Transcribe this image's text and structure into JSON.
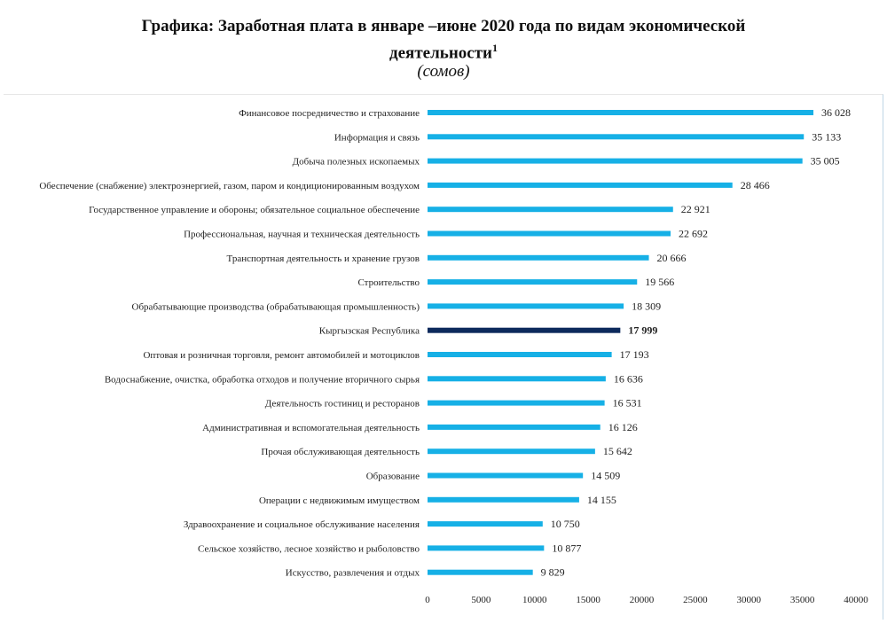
{
  "header": {
    "title_line1": "Графика: Заработная плата в январе –июне 2020 года по видам  экономической",
    "title_line2": "деятельности",
    "footnote_mark": "1",
    "unit": "(сомов)"
  },
  "colors": {
    "bar": "#16b0e6",
    "highlight_bar": "#0d2a5c"
  },
  "chart_data": {
    "type": "bar",
    "orientation": "horizontal",
    "title": "Графика: Заработная плата в январе –июне 2020 года по видам  экономической деятельности",
    "subtitle": "(сомов)",
    "categories": [
      "Финансовое посредничество и страхование",
      "Информация  и  связь",
      "Добыча полезных ископаемых",
      "Обеспечение (снабжение) электроэнергией, газом, паром и кондиционированным  воздухом",
      "Государственное управление  и обороны; обязательное социальное обеспечение",
      "Профессиональная, научная  и техническая деятельность",
      "Транспортная  деятельность и хранение  грузов",
      "Строительство",
      "Обрабатывающие производства (обрабатывающая промышленность)",
      "Кыргызская Республика",
      "Оптовая и розничная торговля, ремонт автомобилей и мотоциклов",
      "Водоснабжение, очистка, обработка отходов и получение вторичного сырья",
      "Деятельность гостиниц и ресторанов",
      "Административная  и вспомогательная деятельность",
      "Прочая обслуживающая деятельность",
      "Образование",
      "Операции  с недвижимым имуществом",
      "Здравоохранение и социальное обслуживание населения",
      "Сельское хозяйство, лесное хозяйство и рыболовство",
      "Искусство, развлечения и отдых"
    ],
    "values": [
      36028,
      35133,
      35005,
      28466,
      22921,
      22692,
      20666,
      19566,
      18309,
      17999,
      17193,
      16636,
      16531,
      16126,
      15642,
      14509,
      14155,
      10750,
      10877,
      9829
    ],
    "value_labels": [
      "36 028",
      "35 133",
      "35 005",
      "28 466",
      "22 921",
      "22 692",
      "20 666",
      "19 566",
      "18 309",
      "17 999",
      "17 193",
      "16 636",
      "16 531",
      "16 126",
      "15 642",
      "14 509",
      "14 155",
      "10 750",
      "10 877",
      "9 829"
    ],
    "highlight_category": "Кыргызская Республика",
    "xlim": [
      0,
      40000
    ],
    "x_ticks": [
      0,
      5000,
      10000,
      15000,
      20000,
      25000,
      30000,
      35000,
      40000
    ],
    "x_tick_labels": [
      "0",
      "5000",
      "10000",
      "15000",
      "20000",
      "25000",
      "30000",
      "35000",
      "40000"
    ],
    "grid": false,
    "legend": "none"
  }
}
